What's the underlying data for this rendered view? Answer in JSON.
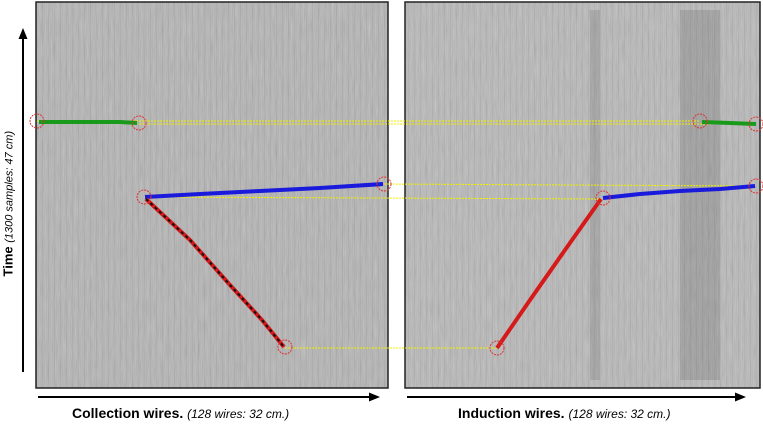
{
  "figure": {
    "y_axis": {
      "label": "Time",
      "detail": "(1300 samples: 47 cm)"
    },
    "panels": [
      {
        "title": "Collection wires.",
        "detail": "(128 wires: 32 cm.)"
      },
      {
        "title": "Induction wires.",
        "detail": "(128 wires: 32 cm.)"
      }
    ],
    "colors": {
      "background_gray": "#b4b4b4",
      "green_track": "#1a9a1a",
      "blue_track": "#1a1adc",
      "red_track": "#d41a1a",
      "dark_track": "#111111",
      "match_line": "#f0f000",
      "endpoint_circle": "#e03030"
    }
  }
}
